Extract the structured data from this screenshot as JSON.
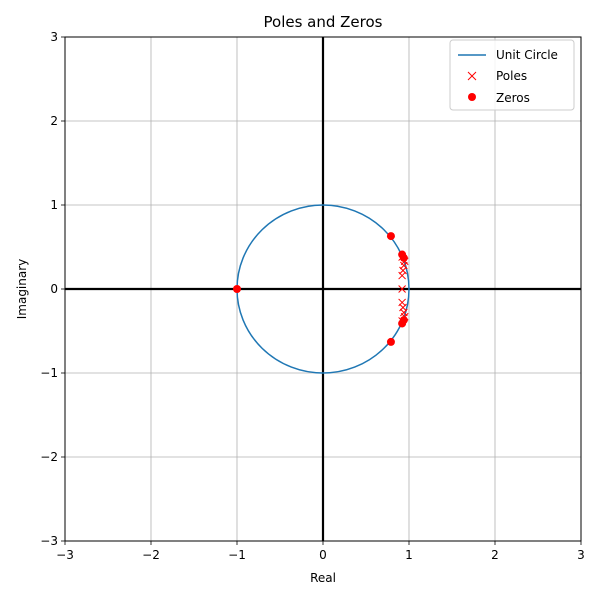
{
  "chart_data": {
    "type": "scatter",
    "title": "Poles and Zeros",
    "xlabel": "Real",
    "ylabel": "Imaginary",
    "xlim": [
      -3,
      3
    ],
    "ylim": [
      -3,
      3
    ],
    "xticks": [
      "−3",
      "−2",
      "−1",
      "0",
      "1",
      "2",
      "3"
    ],
    "yticks": [
      "−3",
      "−2",
      "−1",
      "0",
      "1",
      "2",
      "3"
    ],
    "grid": true,
    "legend_position": "top-right",
    "series": [
      {
        "name": "Unit Circle",
        "kind": "line",
        "color": "#1f77b4",
        "center": [
          0,
          0
        ],
        "radius": 1
      },
      {
        "name": "Poles",
        "kind": "x-marker",
        "color": "#ff0000",
        "points": [
          [
            0.95,
            0.33
          ],
          [
            0.95,
            -0.33
          ],
          [
            0.94,
            0.28
          ],
          [
            0.94,
            -0.28
          ],
          [
            0.93,
            0.22
          ],
          [
            0.93,
            -0.22
          ],
          [
            0.92,
            0.16
          ],
          [
            0.92,
            -0.16
          ],
          [
            0.92,
            0.0
          ],
          [
            0.92,
            0.38
          ],
          [
            0.92,
            -0.38
          ]
        ]
      },
      {
        "name": "Zeros",
        "kind": "circle-marker",
        "color": "#ff0000",
        "points": [
          [
            -1.0,
            0.0
          ],
          [
            0.79,
            0.63
          ],
          [
            0.79,
            -0.63
          ],
          [
            0.92,
            0.41
          ],
          [
            0.92,
            -0.41
          ],
          [
            0.94,
            0.37
          ],
          [
            0.94,
            -0.37
          ]
        ]
      }
    ]
  }
}
